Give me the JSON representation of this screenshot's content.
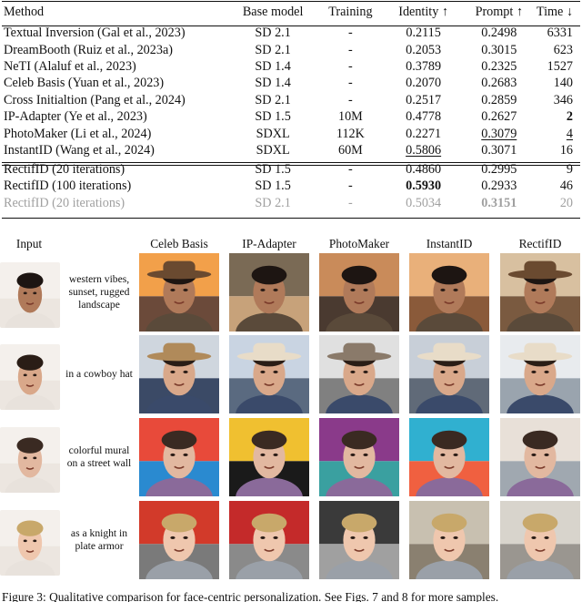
{
  "table": {
    "headers": [
      "Method",
      "Base model",
      "Training",
      "Identity ↑",
      "Prompt ↑",
      "Time ↓"
    ],
    "rows": [
      [
        "Textual Inversion (Gal et al., 2023)",
        "SD 2.1",
        "-",
        "0.2115",
        "0.2498",
        "6331"
      ],
      [
        "DreamBooth (Ruiz et al., 2023a)",
        "SD 2.1",
        "-",
        "0.2053",
        "0.3015",
        "623"
      ],
      [
        "NeTI (Alaluf et al., 2023)",
        "SD 1.4",
        "-",
        "0.3789",
        "0.2325",
        "1527"
      ],
      [
        "Celeb Basis (Yuan et al., 2023)",
        "SD 1.4",
        "-",
        "0.2070",
        "0.2683",
        "140"
      ],
      [
        "Cross Initialtion (Pang et al., 2024)",
        "SD 2.1",
        "-",
        "0.2517",
        "0.2859",
        "346"
      ],
      [
        "IP-Adapter (Ye et al., 2023)",
        "SD 1.5",
        "10M",
        "0.4778",
        "0.2627",
        "2"
      ],
      [
        "PhotoMaker (Li et al., 2024)",
        "SDXL",
        "112K",
        "0.2271",
        "0.3079",
        "4"
      ],
      [
        "InstantID (Wang et al., 2024)",
        "SDXL",
        "60M",
        "0.5806",
        "0.3071",
        "16"
      ]
    ],
    "rows2": [
      [
        "RectifID (20 iterations)",
        "SD 1.5",
        "-",
        "0.4860",
        "0.2995",
        "9"
      ],
      [
        "RectifID (100 iterations)",
        "SD 1.5",
        "-",
        "0.5930",
        "0.2933",
        "46"
      ],
      [
        "RectifID (20 iterations)",
        "SD 2.1",
        "-",
        "0.5034",
        "0.3151",
        "20"
      ]
    ]
  },
  "figure": {
    "columns": [
      "Input",
      "Celeb Basis",
      "IP-Adapter",
      "PhotoMaker",
      "InstantID",
      "RectifID"
    ],
    "prompts": [
      "western vibes, sunset, rugged landscape",
      "in a cowboy hat",
      "colorful mural on a street wall",
      "as a knight in plate armor"
    ]
  },
  "caption": "Figure 3: Qualitative comparison for face-centric personalization. See Figs. 7 and 8 for more samples."
}
